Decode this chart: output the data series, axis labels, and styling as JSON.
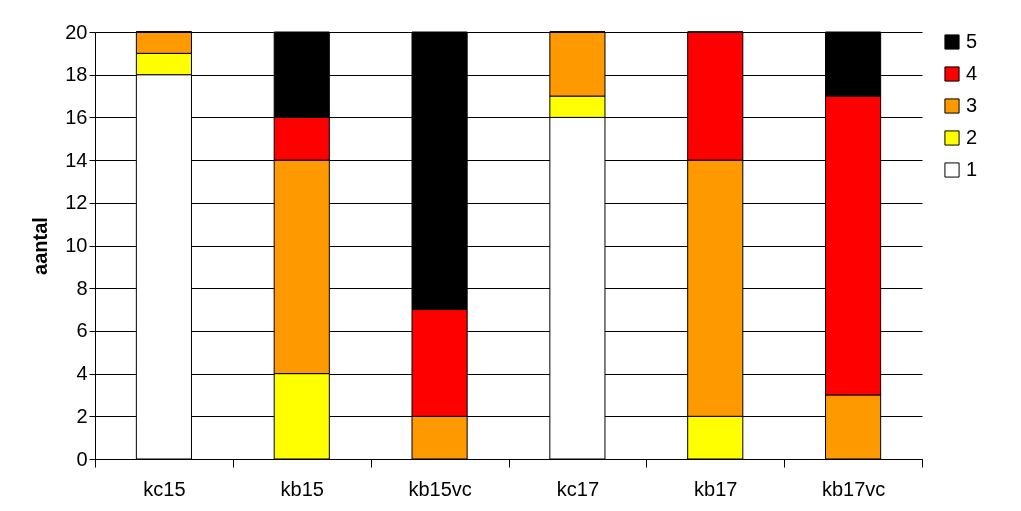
{
  "chart_data": {
    "type": "bar",
    "stacked": true,
    "ylabel": "aantal",
    "categories": [
      "kc15",
      "kb15",
      "kb15vc",
      "kc17",
      "kb17",
      "kb17vc"
    ],
    "series": [
      {
        "name": "1",
        "color": "#ffffff",
        "values": [
          18,
          0,
          0,
          16,
          0,
          0
        ]
      },
      {
        "name": "2",
        "color": "#ffff00",
        "values": [
          1,
          4,
          0,
          1,
          2,
          0
        ]
      },
      {
        "name": "3",
        "color": "#ff9900",
        "values": [
          1,
          10,
          2,
          3,
          12,
          3
        ]
      },
      {
        "name": "4",
        "color": "#ff0000",
        "values": [
          0,
          2,
          5,
          0,
          6,
          14
        ]
      },
      {
        "name": "5",
        "color": "#000000",
        "values": [
          0,
          4,
          13,
          0,
          0,
          3
        ]
      }
    ],
    "ylim": [
      0,
      20
    ],
    "yticks": [
      0,
      2,
      4,
      6,
      8,
      10,
      12,
      14,
      16,
      18,
      20
    ],
    "grid": "y",
    "legend": "right"
  }
}
